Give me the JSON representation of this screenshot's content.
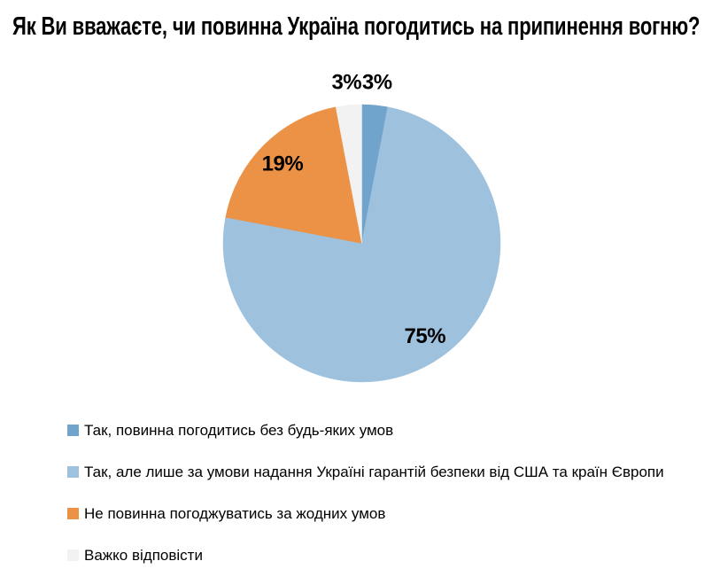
{
  "title": "Як Ви вважаєте, чи повинна Україна погодитись на припинення вогню?",
  "chart_data": {
    "type": "pie",
    "title": "Як Ви вважаєте, чи повинна Україна погодитись на припинення вогню?",
    "start_angle_deg": 0,
    "direction": "clockwise",
    "legend_position": "bottom-left",
    "label_color": "#000000",
    "slices": [
      {
        "label": "Так, повинна погодитись без будь-яких умов",
        "value": 3,
        "display": "3%",
        "color": "#71A4CD"
      },
      {
        "label": "Так, але лише за умови надання Україні гарантій безпеки від США та країн Європи",
        "value": 75,
        "display": "75%",
        "color": "#9EC1DE"
      },
      {
        "label": "Не повинна погоджуватись за жодних умов",
        "value": 19,
        "display": "19%",
        "color": "#EC9246"
      },
      {
        "label": "Важко відповісти",
        "value": 3,
        "display": "3%",
        "color": "#F2F2F2"
      }
    ]
  }
}
